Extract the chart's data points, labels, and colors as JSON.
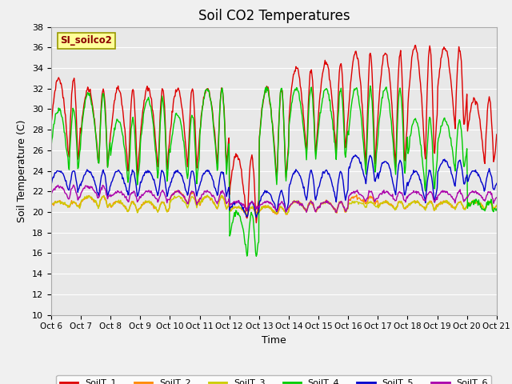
{
  "title": "Soil CO2 Temperatures",
  "xlabel": "Time",
  "ylabel": "Soil Temperature (C)",
  "ylim": [
    10,
    38
  ],
  "xlim": [
    0,
    15
  ],
  "xtick_labels": [
    "Oct 6",
    "Oct 7",
    "Oct 8",
    "Oct 9",
    "Oct 10",
    "Oct 11",
    "Oct 12",
    "Oct 13",
    "Oct 14",
    "Oct 15",
    "Oct 16",
    "Oct 17",
    "Oct 18",
    "Oct 19",
    "Oct 20",
    "Oct 21"
  ],
  "ytick_values": [
    10,
    12,
    14,
    16,
    18,
    20,
    22,
    24,
    26,
    28,
    30,
    32,
    34,
    36,
    38
  ],
  "series_colors": [
    "#dd0000",
    "#ff8800",
    "#cccc00",
    "#00cc00",
    "#0000cc",
    "#aa00aa"
  ],
  "series_labels": [
    "SoilT_1",
    "SoilT_2",
    "SoilT_3",
    "SoilT_4",
    "SoilT_5",
    "SoilT_6"
  ],
  "inset_label": "SI_soilco2",
  "fig_bg_color": "#f0f0f0",
  "plot_bg_color": "#e8e8e8",
  "grid_color": "#ffffff",
  "title_fontsize": 12
}
